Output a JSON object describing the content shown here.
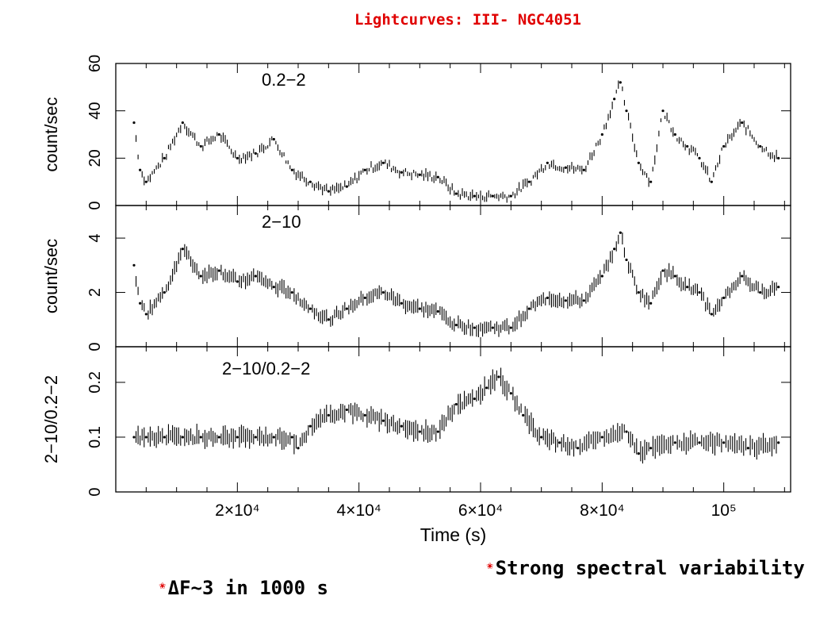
{
  "title": "Lightcurves: III- NGC4051",
  "bullets": [
    {
      "text": "Strong spectral variability"
    },
    {
      "text": "ΔF~3 in 1000 s"
    }
  ],
  "chart_data": [
    {
      "type": "scatter",
      "panel_label": "0.2−2",
      "ylabel": "count/sec",
      "xlim": [
        0,
        111000
      ],
      "ylim": [
        0,
        60
      ],
      "yticks": [
        0,
        20,
        40,
        60
      ],
      "x": [
        3000,
        4000,
        5000,
        8000,
        11000,
        14000,
        17000,
        20000,
        23000,
        26000,
        29000,
        32000,
        35000,
        38000,
        41000,
        44000,
        47000,
        50000,
        53000,
        56000,
        59000,
        62000,
        65000,
        68000,
        71000,
        74000,
        77000,
        80000,
        82000,
        83000,
        84000,
        86000,
        88000,
        90000,
        92000,
        94000,
        96000,
        98000,
        100000,
        103000,
        106000,
        109000
      ],
      "y": [
        35,
        15,
        10,
        20,
        35,
        25,
        30,
        20,
        22,
        28,
        15,
        10,
        6,
        8,
        15,
        18,
        14,
        13,
        12,
        5,
        4,
        4,
        4,
        10,
        18,
        16,
        15,
        30,
        45,
        52,
        40,
        18,
        10,
        40,
        30,
        25,
        20,
        10,
        25,
        35,
        25,
        20
      ]
    },
    {
      "type": "scatter",
      "panel_label": "2−10",
      "ylabel": "count/sec",
      "xlim": [
        0,
        111000
      ],
      "ylim": [
        0,
        5.2
      ],
      "yticks": [
        0,
        2,
        4
      ],
      "x": [
        3000,
        4000,
        5000,
        8000,
        11000,
        14000,
        17000,
        20000,
        23000,
        26000,
        29000,
        32000,
        35000,
        38000,
        41000,
        44000,
        47000,
        50000,
        53000,
        56000,
        59000,
        62000,
        65000,
        68000,
        71000,
        74000,
        77000,
        80000,
        82000,
        83000,
        84000,
        86000,
        88000,
        90000,
        92000,
        94000,
        96000,
        98000,
        100000,
        103000,
        106000,
        109000
      ],
      "y": [
        3.0,
        1.6,
        1.2,
        2.0,
        3.6,
        2.6,
        2.8,
        2.4,
        2.6,
        2.2,
        2.0,
        1.4,
        1.0,
        1.4,
        1.8,
        2.0,
        1.6,
        1.4,
        1.3,
        0.8,
        0.7,
        0.7,
        0.7,
        1.4,
        1.8,
        1.7,
        1.7,
        2.6,
        3.6,
        4.2,
        3.2,
        2.0,
        1.6,
        2.8,
        2.6,
        2.2,
        2.0,
        1.2,
        1.8,
        2.6,
        2.0,
        2.2
      ]
    },
    {
      "type": "scatter",
      "panel_label": "2−10/0.2−2",
      "ylabel": "2−10/0.2−2",
      "xlabel": "Time (s)",
      "xlim": [
        0,
        111000
      ],
      "ylim": [
        0,
        0.265
      ],
      "yticks": [
        0,
        0.1,
        0.2
      ],
      "xtick_values": [
        20000,
        40000,
        60000,
        80000,
        100000
      ],
      "xtick_labels": [
        "2×10⁴",
        "4×10⁴",
        "6×10⁴",
        "8×10⁴",
        "10⁵"
      ],
      "x": [
        3000,
        5000,
        8000,
        11000,
        14000,
        17000,
        20000,
        23000,
        26000,
        29000,
        30000,
        32000,
        35000,
        38000,
        41000,
        44000,
        47000,
        50000,
        53000,
        56000,
        59000,
        61000,
        63000,
        65000,
        67000,
        70000,
        73000,
        76000,
        80000,
        84000,
        86000,
        88000,
        92000,
        96000,
        100000,
        104000,
        109000
      ],
      "y": [
        0.1,
        0.1,
        0.1,
        0.1,
        0.1,
        0.1,
        0.1,
        0.1,
        0.1,
        0.1,
        0.08,
        0.12,
        0.14,
        0.15,
        0.14,
        0.13,
        0.12,
        0.11,
        0.11,
        0.16,
        0.17,
        0.19,
        0.21,
        0.18,
        0.14,
        0.1,
        0.09,
        0.08,
        0.1,
        0.11,
        0.07,
        0.08,
        0.09,
        0.09,
        0.09,
        0.08,
        0.09
      ]
    }
  ]
}
